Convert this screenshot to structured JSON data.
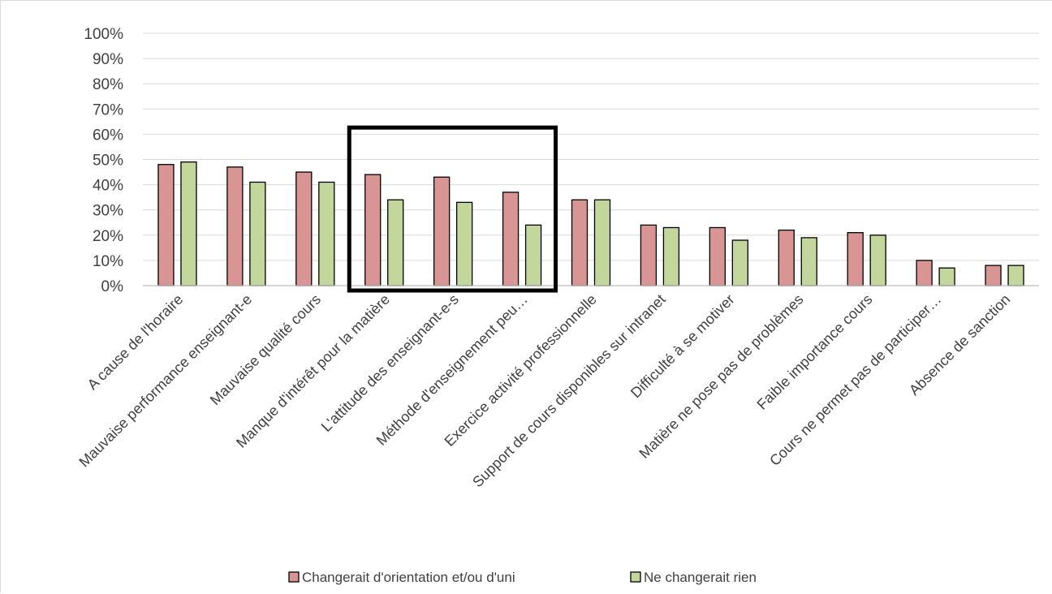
{
  "colors": {
    "series1": "#d99594",
    "series2": "#c3d69b",
    "bar_border": "#000000",
    "grid": "#d9d9d9",
    "axis": "#bfbfbf",
    "highlight_box": "#000000"
  },
  "chart_data": {
    "type": "bar",
    "categories": [
      "A cause de l'horaire",
      "Mauvaise performance enseignant-e",
      "Mauvaise qualité cours",
      "Manque d'intérêt pour la matière",
      "L'attitude des enseignant-e-s",
      "Méthode d'enseignement peu…",
      "Exercice activité professionnelle",
      "Support de cours disponibles sur intranet",
      "Difficulté à se motiver",
      "Matière ne pose pas de problèmes",
      "Faible importance cours",
      "Cours ne permet pas de participer…",
      "Absence de sanction"
    ],
    "series": [
      {
        "name": "Changerait d'orientation et/ou d'uni",
        "values": [
          0.48,
          0.47,
          0.45,
          0.44,
          0.43,
          0.37,
          0.34,
          0.24,
          0.23,
          0.22,
          0.21,
          0.1,
          0.08
        ]
      },
      {
        "name": "Ne changerait rien",
        "values": [
          0.49,
          0.41,
          0.41,
          0.34,
          0.33,
          0.24,
          0.34,
          0.23,
          0.18,
          0.19,
          0.2,
          0.07,
          0.08
        ]
      }
    ],
    "ylim": [
      0,
      1
    ],
    "yticks": [
      "0%",
      "10%",
      "20%",
      "30%",
      "40%",
      "50%",
      "60%",
      "70%",
      "80%",
      "90%",
      "100%"
    ],
    "grid": true,
    "legend_position": "bottom",
    "highlight": {
      "from_category": "Manque d'intérêt pour la matière",
      "to_category": "Méthode d'enseignement peu…",
      "top_value": 0.62
    }
  }
}
